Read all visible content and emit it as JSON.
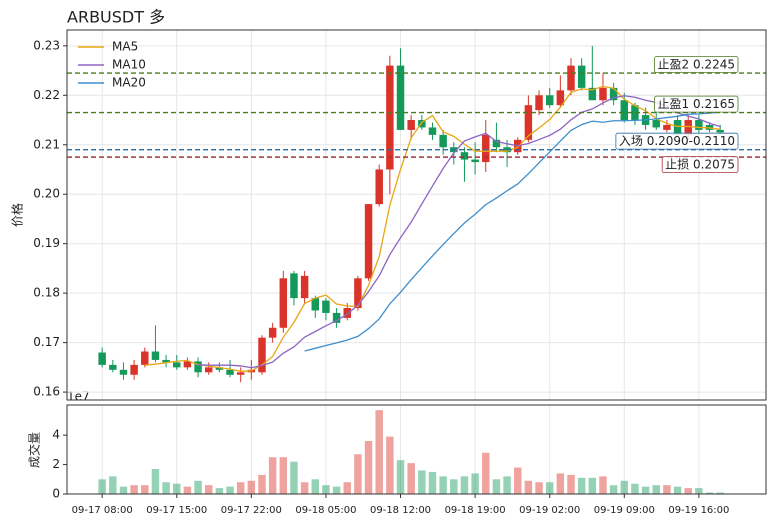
{
  "chart_data": {
    "type": "candlestick",
    "title": "ARBUSDT 多",
    "ylabel": "价格",
    "ylim": [
      0.1584,
      0.2332
    ],
    "yticks": [
      0.16,
      0.17,
      0.18,
      0.19,
      0.2,
      0.21,
      0.22,
      0.23
    ],
    "yticks_labels": [
      "0.16",
      "0.17",
      "0.18",
      "0.19",
      "0.20",
      "0.21",
      "0.22",
      "0.23"
    ],
    "xlim": [
      -3.3,
      62.3
    ],
    "xticks": [
      {
        "value": 0,
        "label": "09-17 08:00"
      },
      {
        "value": 7,
        "label": "09-17 15:00"
      },
      {
        "value": 14,
        "label": "09-17 22:00"
      },
      {
        "value": 21,
        "label": "09-18 05:00"
      },
      {
        "value": 28,
        "label": "09-18 12:00"
      },
      {
        "value": 35,
        "label": "09-18 19:00"
      },
      {
        "value": 42,
        "label": "09-19 02:00"
      },
      {
        "value": 49,
        "label": "09-19 09:00"
      },
      {
        "value": 56,
        "label": "09-19 16:00"
      }
    ],
    "up_color": "#d9332a",
    "down_color": "#13995a",
    "grid": true,
    "legend": "upper left",
    "open": [
      0.168,
      0.1655,
      0.1645,
      0.1635,
      0.1655,
      0.1682,
      0.1665,
      0.166,
      0.165,
      0.1662,
      0.164,
      0.165,
      0.1645,
      0.1635,
      0.164,
      0.164,
      0.171,
      0.173,
      0.184,
      0.179,
      0.179,
      0.1785,
      0.176,
      0.175,
      0.177,
      0.183,
      0.198,
      0.205,
      0.226,
      0.213,
      0.215,
      0.2135,
      0.212,
      0.2095,
      0.2085,
      0.207,
      0.2065,
      0.211,
      0.2095,
      0.2085,
      0.211,
      0.217,
      0.22,
      0.218,
      0.221,
      0.226,
      0.2215,
      0.219,
      0.2215,
      0.219,
      0.218,
      0.216,
      0.215,
      0.213,
      0.215,
      0.212,
      0.215,
      0.214,
      0.213
    ],
    "high": [
      0.169,
      0.1665,
      0.166,
      0.1665,
      0.169,
      0.1735,
      0.1675,
      0.1675,
      0.167,
      0.167,
      0.166,
      0.166,
      0.1665,
      0.165,
      0.1665,
      0.1715,
      0.174,
      0.1845,
      0.1845,
      0.1845,
      0.1795,
      0.179,
      0.177,
      0.178,
      0.1835,
      0.198,
      0.206,
      0.228,
      0.2295,
      0.216,
      0.216,
      0.2145,
      0.213,
      0.2105,
      0.2095,
      0.2105,
      0.215,
      0.2145,
      0.211,
      0.2115,
      0.22,
      0.221,
      0.2215,
      0.224,
      0.2275,
      0.2275,
      0.23,
      0.2245,
      0.2225,
      0.2205,
      0.2185,
      0.2175,
      0.2165,
      0.215,
      0.216,
      0.216,
      0.216,
      0.2145,
      0.214
    ],
    "low": [
      0.165,
      0.164,
      0.1625,
      0.1625,
      0.165,
      0.166,
      0.165,
      0.1645,
      0.1645,
      0.163,
      0.1635,
      0.164,
      0.163,
      0.162,
      0.1625,
      0.1635,
      0.17,
      0.172,
      0.1775,
      0.178,
      0.175,
      0.1745,
      0.173,
      0.1745,
      0.1765,
      0.1825,
      0.1975,
      0.2,
      0.213,
      0.211,
      0.213,
      0.211,
      0.208,
      0.206,
      0.2025,
      0.204,
      0.2045,
      0.2085,
      0.2055,
      0.208,
      0.2105,
      0.216,
      0.2175,
      0.2175,
      0.22,
      0.221,
      0.219,
      0.218,
      0.218,
      0.2145,
      0.214,
      0.213,
      0.213,
      0.2125,
      0.2115,
      0.211,
      0.212,
      0.2125,
      0.212
    ],
    "close": [
      0.1655,
      0.1645,
      0.1635,
      0.1655,
      0.1682,
      0.1665,
      0.166,
      0.165,
      0.1662,
      0.164,
      0.165,
      0.1645,
      0.1635,
      0.164,
      0.1645,
      0.171,
      0.173,
      0.183,
      0.179,
      0.1835,
      0.1765,
      0.176,
      0.174,
      0.177,
      0.183,
      0.198,
      0.205,
      0.226,
      0.213,
      0.215,
      0.2135,
      0.212,
      0.2095,
      0.2085,
      0.207,
      0.2065,
      0.212,
      0.2095,
      0.2085,
      0.211,
      0.218,
      0.22,
      0.218,
      0.221,
      0.226,
      0.2215,
      0.219,
      0.2215,
      0.219,
      0.215,
      0.215,
      0.214,
      0.2135,
      0.214,
      0.212,
      0.215,
      0.213,
      0.213,
      0.2125
    ],
    "series": [
      {
        "name": "MA5",
        "color": "#e8a714",
        "values": [
          null,
          null,
          null,
          null,
          0.16544,
          0.16564,
          0.16594,
          0.16624,
          0.16638,
          0.16554,
          0.16524,
          0.16494,
          0.16464,
          0.1642,
          0.1643,
          0.1655,
          0.1672,
          0.1711,
          0.1741,
          0.1779,
          0.179,
          0.1796,
          0.1778,
          0.1774,
          0.1773,
          0.1816,
          0.1874,
          0.1978,
          0.205,
          0.2114,
          0.2145,
          0.2159,
          0.2126,
          0.2117,
          0.2101,
          0.2087,
          0.2087,
          0.2087,
          0.2087,
          0.2095,
          0.2118,
          0.2134,
          0.2151,
          0.2176,
          0.2206,
          0.2213,
          0.2211,
          0.2218,
          0.2214,
          0.2192,
          0.2179,
          0.2169,
          0.2153,
          0.2143,
          0.2137,
          0.2137,
          0.2135,
          0.2134,
          0.2131
        ]
      },
      {
        "name": "MA10",
        "color": "#8d65c5",
        "values": [
          null,
          null,
          null,
          null,
          null,
          null,
          null,
          null,
          null,
          0.1655,
          0.16544,
          0.16544,
          0.16544,
          0.16529,
          0.16492,
          0.16537,
          0.16607,
          0.16787,
          0.16915,
          0.1711,
          0.17225,
          0.1734,
          0.17445,
          0.17575,
          0.1776,
          0.1803,
          0.1835,
          0.1878,
          0.1912,
          0.19435,
          0.19805,
          0.20165,
          0.2052,
          0.20835,
          0.21075,
          0.2116,
          0.2123,
          0.21065,
          0.2102,
          0.2098,
          0.21025,
          0.21105,
          0.2119,
          0.21315,
          0.21505,
          0.21655,
          0.21725,
          0.21845,
          0.2195,
          0.2199,
          0.2196,
          0.219,
          0.21855,
          0.21785,
          0.21645,
          0.2158,
          0.2152,
          0.21435,
          0.2137
        ]
      },
      {
        "name": "MA20",
        "color": "#3f8fce",
        "values": [
          null,
          null,
          null,
          null,
          null,
          null,
          null,
          null,
          null,
          null,
          null,
          null,
          null,
          null,
          null,
          null,
          null,
          null,
          null,
          0.1683,
          0.16885,
          0.16942,
          0.16995,
          0.17052,
          0.17126,
          0.17284,
          0.17479,
          0.17784,
          0.18018,
          0.18273,
          0.18515,
          0.18753,
          0.18983,
          0.19205,
          0.19418,
          0.19595,
          0.1979,
          0.19923,
          0.2007,
          0.20208,
          0.20415,
          0.20635,
          0.20855,
          0.21075,
          0.2129,
          0.21408,
          0.21478,
          0.21455,
          0.21485,
          0.21485,
          0.21493,
          0.21503,
          0.21523,
          0.2155,
          0.21575,
          0.21618,
          0.21623,
          0.2164,
          0.2166
        ]
      }
    ],
    "levels": [
      {
        "label": "止盈2 0.2245",
        "value": 0.2245,
        "color": "#4b7a1f"
      },
      {
        "label": "止盈1 0.2165",
        "value": 0.2165,
        "color": "#4b7a1f"
      },
      {
        "label": "入场 0.2090-0.2110",
        "value": 0.209,
        "color": "#2f6fa8"
      },
      {
        "label": "止损 0.2075",
        "value": 0.2075,
        "color": "#a8323a"
      }
    ],
    "volume": {
      "ylabel": "成交量",
      "offset_label": "1e7",
      "ylim": [
        0,
        6.05
      ],
      "yticks": [
        0,
        2,
        4
      ],
      "values": [
        1.0,
        1.2,
        0.5,
        0.6,
        0.6,
        1.7,
        0.8,
        0.7,
        0.5,
        0.9,
        0.6,
        0.4,
        0.5,
        0.8,
        0.9,
        1.3,
        2.5,
        2.5,
        2.2,
        0.8,
        1.0,
        0.6,
        0.5,
        0.8,
        2.7,
        3.6,
        5.7,
        3.9,
        2.3,
        2.1,
        1.6,
        1.5,
        1.2,
        1.0,
        1.2,
        1.4,
        2.8,
        1.0,
        1.2,
        1.8,
        0.9,
        0.8,
        0.8,
        1.4,
        1.3,
        1.1,
        1.1,
        1.2,
        0.6,
        0.9,
        0.7,
        0.5,
        0.6,
        0.6,
        0.5,
        0.4,
        0.4,
        0.1,
        0.1
      ]
    }
  }
}
